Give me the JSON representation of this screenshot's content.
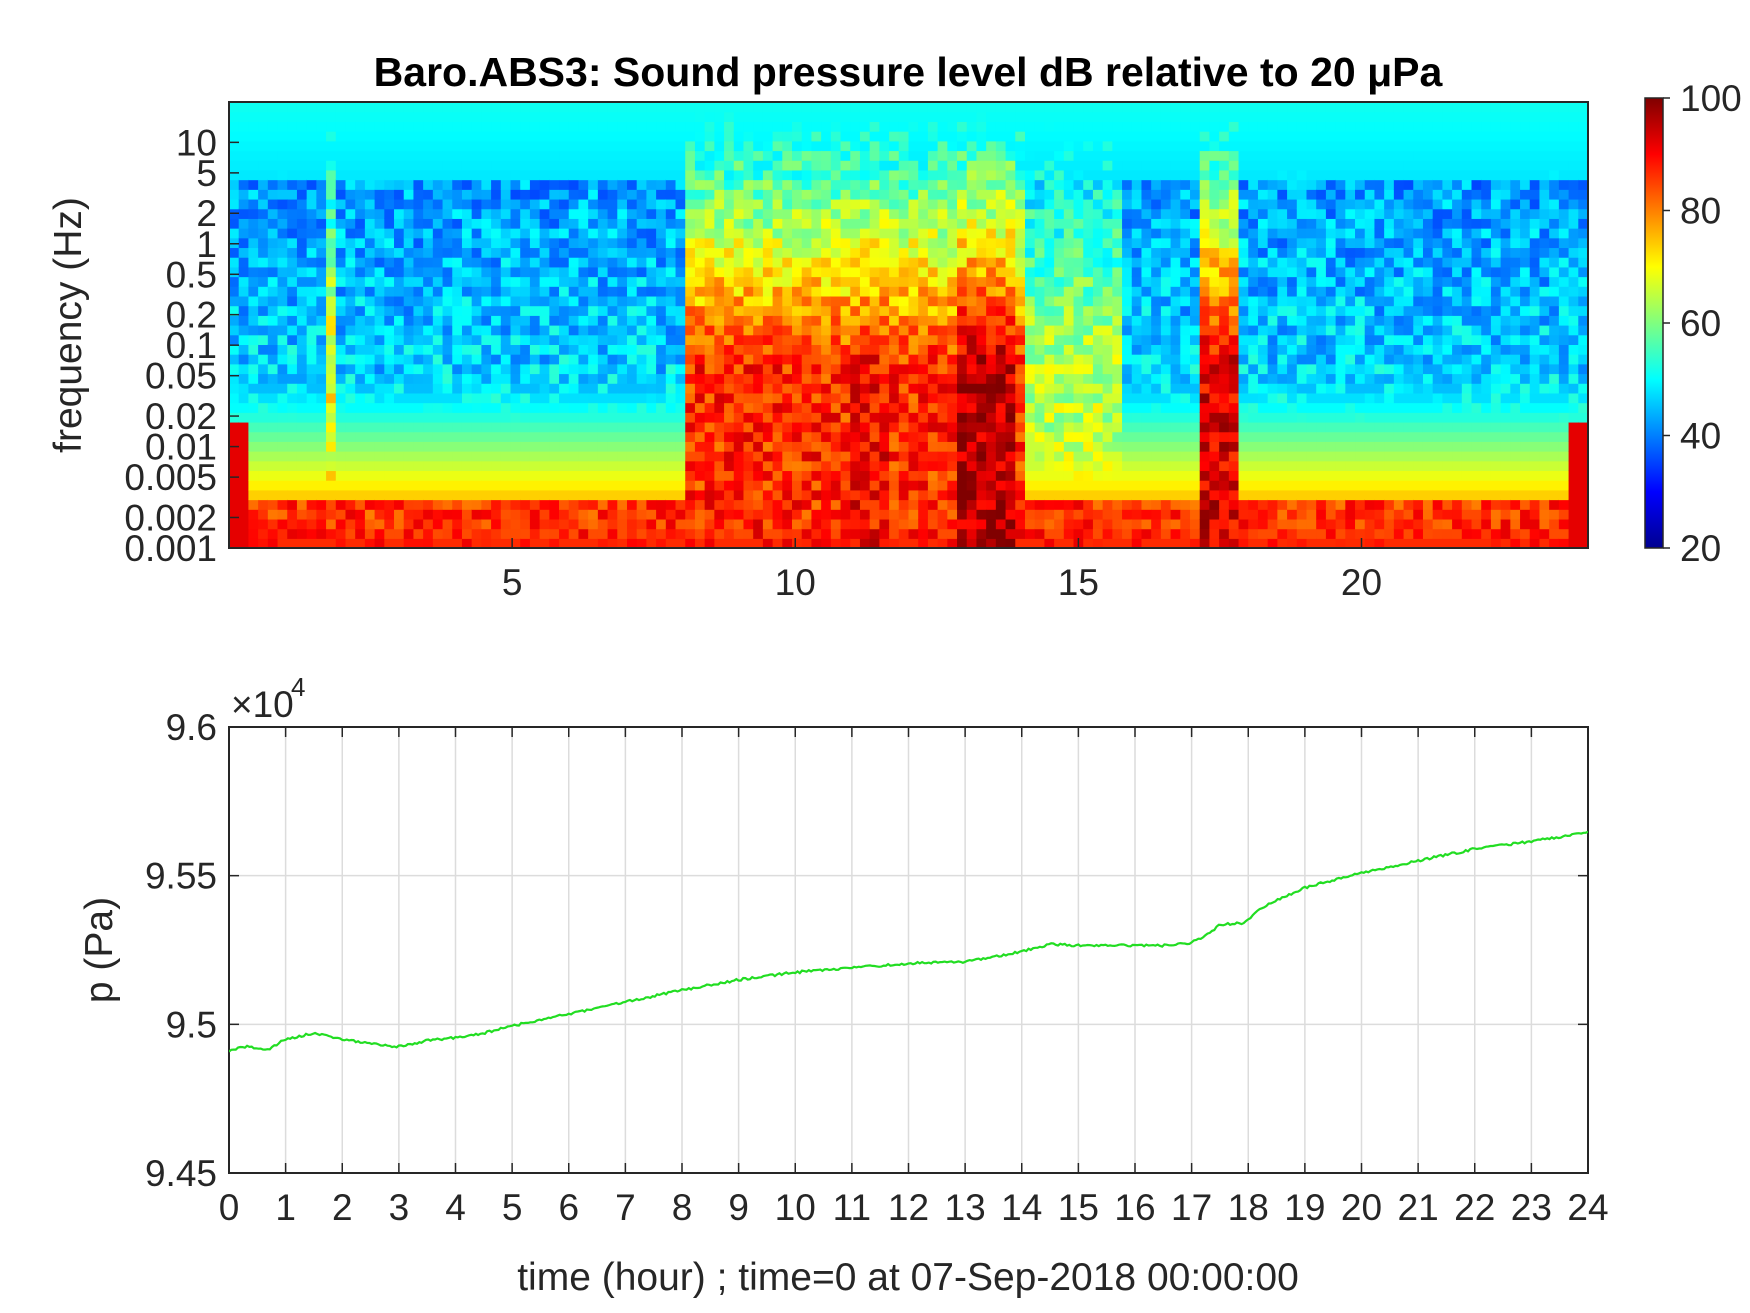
{
  "chart_data": [
    {
      "type": "heatmap",
      "title": "Baro.ABS3: Sound pressure level dB relative to 20 μPa",
      "ylabel": "frequency (Hz)",
      "xlabel": "",
      "x_ticks": [
        5,
        10,
        15,
        20
      ],
      "xlim": [
        0,
        24
      ],
      "y_scale": "log",
      "y_ticks": [
        "0.001",
        "0.002",
        "0.005",
        "0.01",
        "0.02",
        "0.05",
        "0.1",
        "0.2",
        "0.5",
        "1",
        "2",
        "5",
        "10"
      ],
      "ylim": [
        0.001,
        25
      ],
      "colorbar": {
        "min": 20,
        "max": 100,
        "ticks": [
          20,
          40,
          60,
          80,
          100
        ],
        "colormap": "jet"
      },
      "loud_periods_hours": [
        [
          8,
          14
        ],
        [
          17.2,
          17.8
        ]
      ],
      "grid": false
    },
    {
      "type": "line",
      "title": "",
      "xlabel": "time (hour) ; time=0 at 07-Sep-2018 00:00:00",
      "ylabel": "p (Pa)",
      "y_multiplier": "×10",
      "y_multiplier_exponent": "4",
      "xlim": [
        0,
        24
      ],
      "ylim": [
        94500,
        96000
      ],
      "x_ticks": [
        0,
        1,
        2,
        3,
        4,
        5,
        6,
        7,
        8,
        9,
        10,
        11,
        12,
        13,
        14,
        15,
        16,
        17,
        18,
        19,
        20,
        21,
        22,
        23,
        24
      ],
      "y_ticks": [
        "9.45",
        "9.5",
        "9.55",
        "9.6"
      ],
      "grid": true,
      "series": [
        {
          "color": "#22dd22",
          "x": [
            0,
            0.3,
            0.7,
            1.0,
            1.5,
            2.0,
            2.5,
            3.0,
            3.5,
            4.0,
            4.5,
            5.0,
            6.0,
            7.0,
            8.0,
            9.0,
            10.0,
            11.0,
            12.0,
            13.0,
            14.0,
            14.5,
            15.0,
            16.0,
            16.5,
            17.0,
            17.3,
            17.5,
            17.9,
            18.3,
            19.0,
            20.0,
            21.0,
            22.0,
            23.0,
            24.0
          ],
          "y": [
            94910,
            94925,
            94915,
            94950,
            94970,
            94950,
            94935,
            94925,
            94945,
            94955,
            94970,
            94995,
            95035,
            95075,
            95115,
            95150,
            95175,
            95190,
            95205,
            95210,
            95245,
            95270,
            95265,
            95265,
            95265,
            95275,
            95305,
            95335,
            95340,
            95400,
            95460,
            95510,
            95550,
            95590,
            95615,
            95645
          ]
        }
      ]
    }
  ]
}
